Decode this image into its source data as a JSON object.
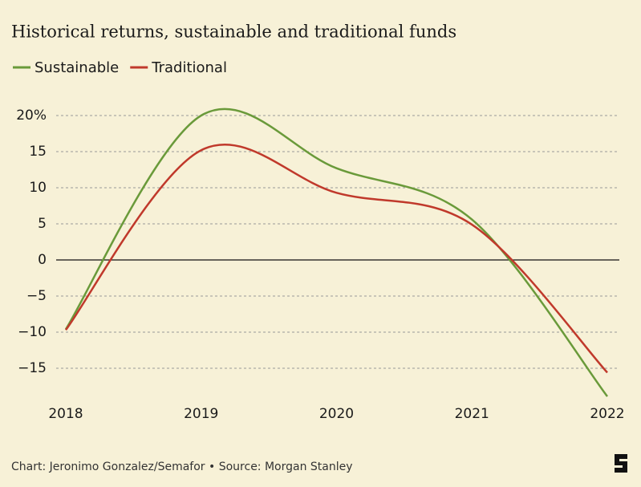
{
  "chart_data": {
    "type": "line",
    "title": "Historical returns, sustainable and traditional funds",
    "source": "Chart: Jeronimo Gonzalez/Semafor • Source: Morgan Stanley",
    "x": [
      2018,
      2019,
      2020,
      2021,
      2022
    ],
    "xlim": [
      2018,
      2022
    ],
    "xticks": [
      2018,
      2019,
      2020,
      2021,
      2022
    ],
    "ylim": [
      -20,
      21
    ],
    "yticks": [
      {
        "value": -15,
        "label": "−15"
      },
      {
        "value": -10,
        "label": "−10"
      },
      {
        "value": -5,
        "label": "−5"
      },
      0,
      5,
      10,
      15,
      {
        "value": 20,
        "label": "20%"
      }
    ],
    "grid": true,
    "series": [
      {
        "name": "Sustainable",
        "color": "#6a9a3a",
        "values": [
          -9.6,
          20,
          12.7,
          5.6,
          -18.9
        ]
      },
      {
        "name": "Traditional",
        "color": "#c0392b",
        "values": [
          -9.7,
          15.2,
          9.3,
          4.9,
          -15.6
        ]
      }
    ]
  }
}
